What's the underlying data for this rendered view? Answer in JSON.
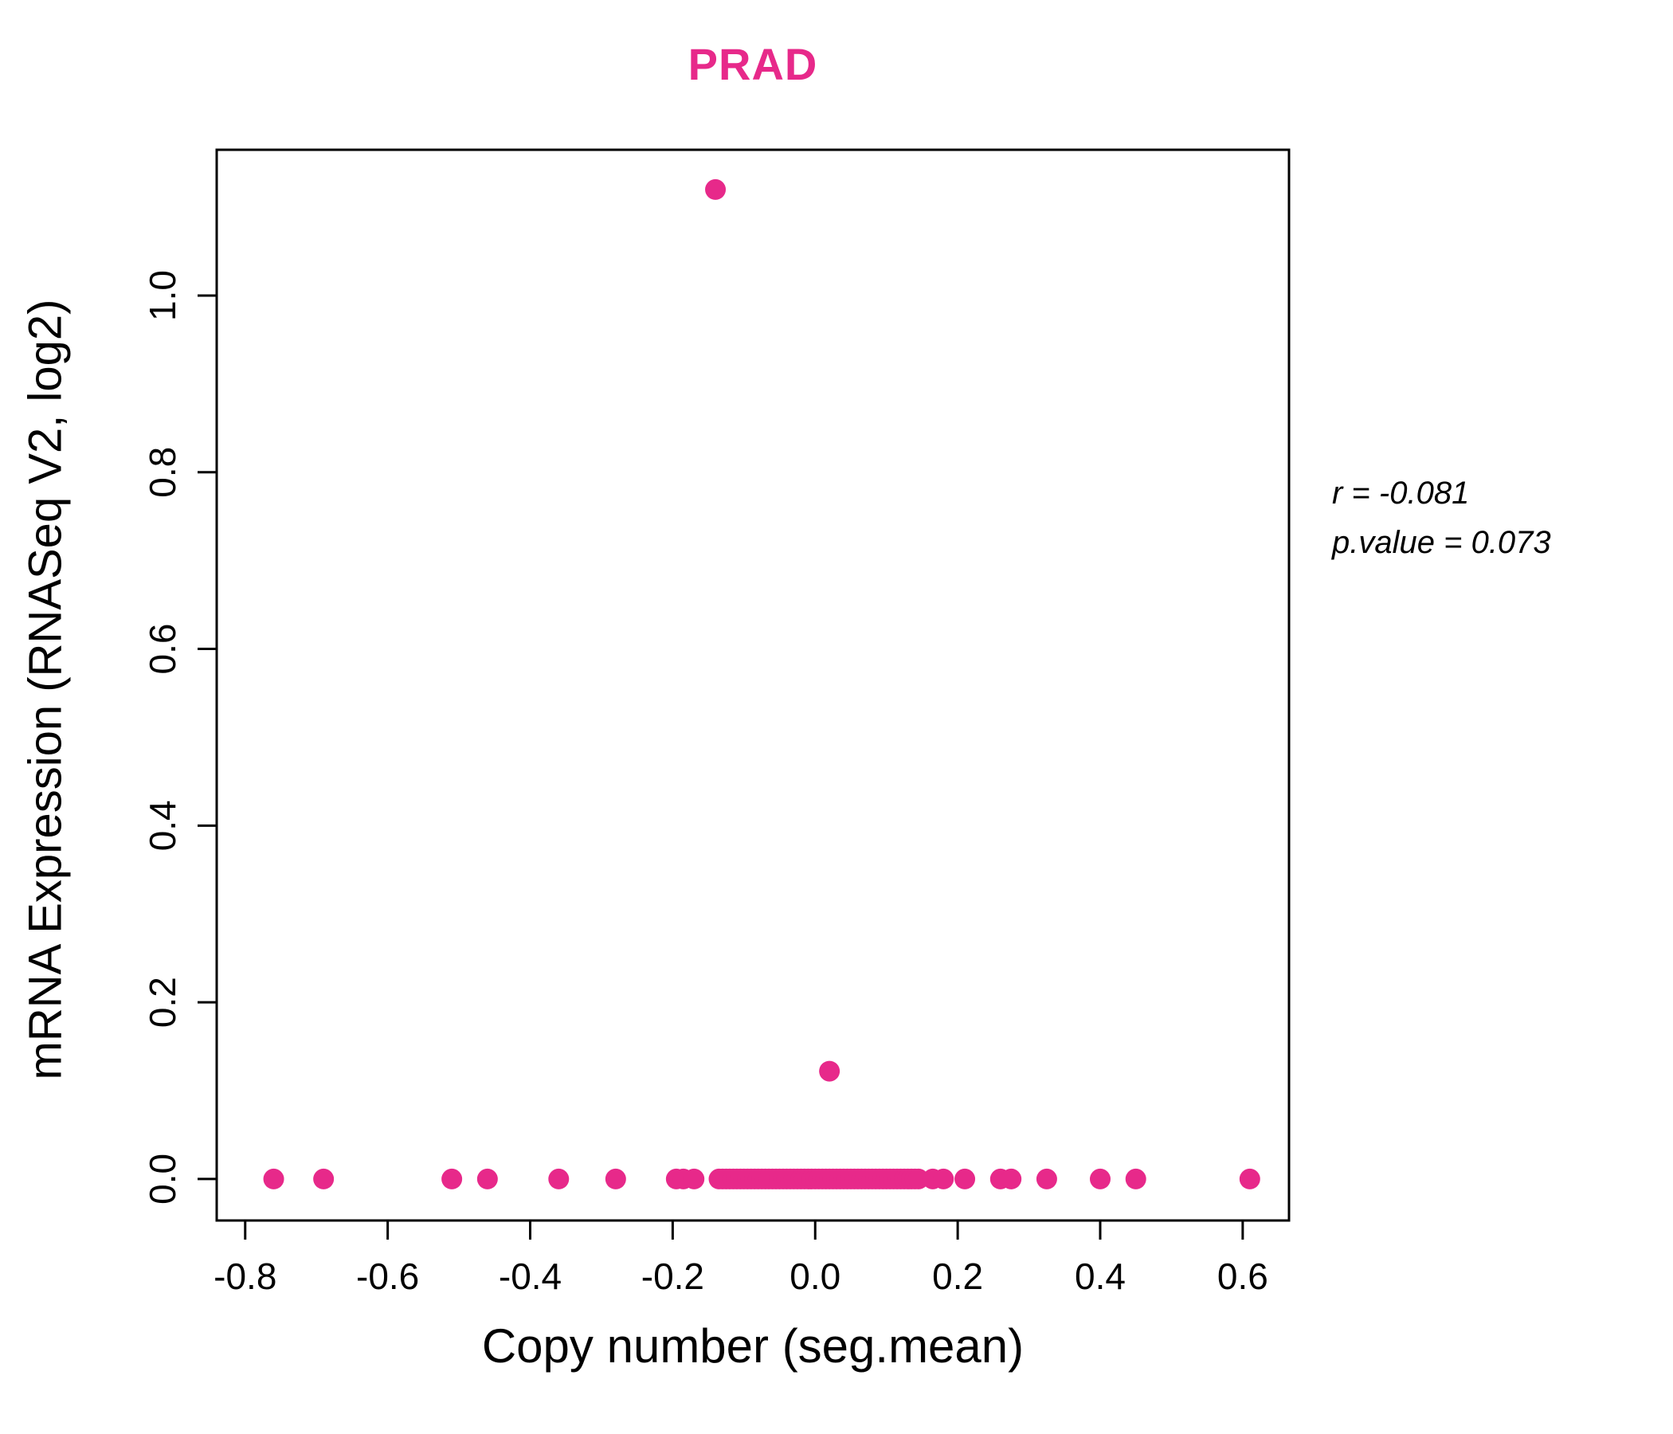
{
  "title": "PRAD",
  "title_color": "#E7298A",
  "annotation": {
    "r_label": "r = -0.081",
    "p_label": "p.value = 0.073"
  },
  "chart_data": {
    "type": "scatter",
    "title": "PRAD",
    "xlabel": "Copy number (seg.mean)",
    "ylabel": "mRNA Expression (RNASeq V2, log2)",
    "xlim": [
      -0.84,
      0.665
    ],
    "ylim": [
      -0.047,
      1.165
    ],
    "x_ticks": [
      -0.8,
      -0.6,
      -0.4,
      -0.2,
      0.0,
      0.2,
      0.4,
      0.6
    ],
    "x_tick_labels": [
      "-0.8",
      "-0.6",
      "-0.4",
      "-0.2",
      "0.0",
      "0.2",
      "0.4",
      "0.6"
    ],
    "y_ticks": [
      0.0,
      0.2,
      0.4,
      0.6,
      0.8,
      1.0
    ],
    "y_tick_labels": [
      "0.0",
      "0.2",
      "0.4",
      "0.6",
      "0.8",
      "1.0"
    ],
    "point_color": "#E7298A",
    "grid": false,
    "stats": {
      "r": -0.081,
      "p_value": 0.073
    },
    "points_y0_x": [
      -0.76,
      -0.69,
      -0.51,
      -0.46,
      -0.36,
      -0.28,
      -0.195,
      -0.185,
      -0.17,
      -0.135,
      -0.13,
      -0.125,
      -0.12,
      -0.115,
      -0.11,
      -0.105,
      -0.1,
      -0.095,
      -0.09,
      -0.085,
      -0.08,
      -0.075,
      -0.07,
      -0.065,
      -0.06,
      -0.055,
      -0.05,
      -0.045,
      -0.04,
      -0.035,
      -0.03,
      -0.025,
      -0.02,
      -0.015,
      -0.01,
      -0.005,
      0.0,
      0.005,
      0.01,
      0.015,
      0.02,
      0.025,
      0.03,
      0.035,
      0.04,
      0.045,
      0.05,
      0.055,
      0.06,
      0.065,
      0.07,
      0.075,
      0.08,
      0.085,
      0.09,
      0.095,
      0.1,
      0.105,
      0.11,
      0.115,
      0.12,
      0.125,
      0.13,
      0.135,
      0.14,
      0.145,
      0.165,
      0.18,
      0.21,
      0.26,
      0.275,
      0.325,
      0.4,
      0.45,
      0.61
    ],
    "outliers": [
      {
        "x": -0.14,
        "y": 1.12
      },
      {
        "x": 0.02,
        "y": 0.122
      }
    ]
  }
}
